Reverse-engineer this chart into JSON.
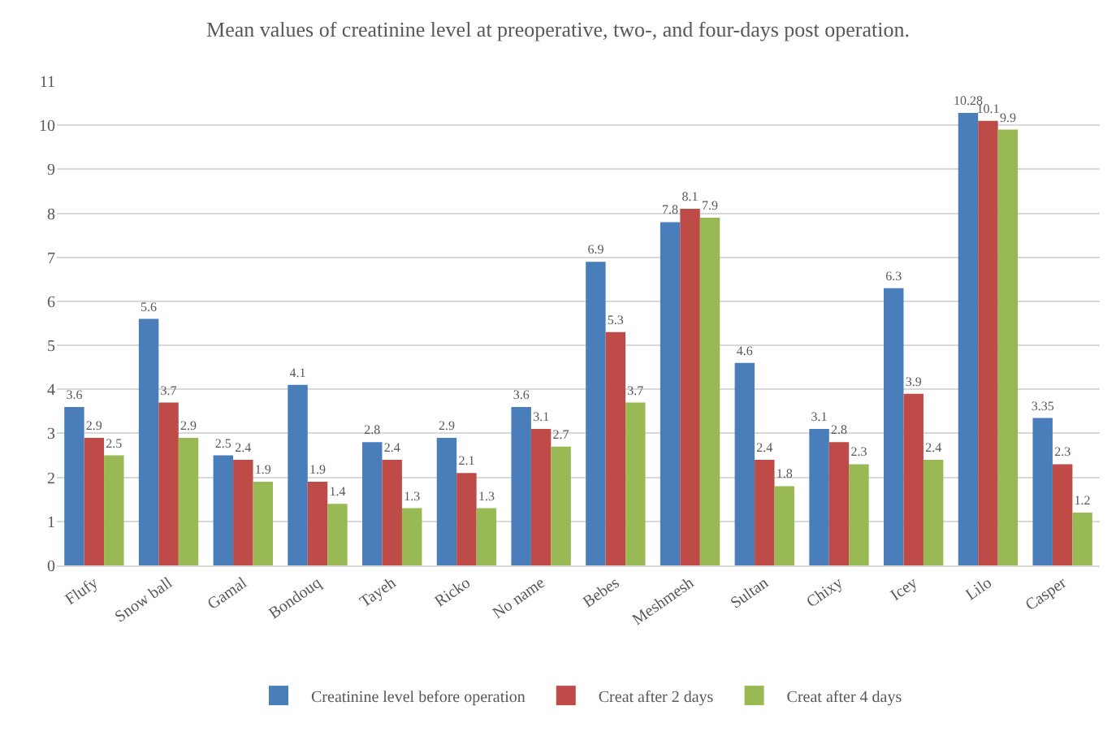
{
  "chart_data": {
    "type": "bar",
    "title": "Mean values of creatinine level at preoperative, two-, and four-days post operation.",
    "categories": [
      "Flufy",
      "Snow ball",
      "Gamal",
      "Bondouq",
      "Tayeh",
      "Ricko",
      "No name",
      "Bebes",
      "Meshmesh",
      "Sultan",
      "Chixy",
      "Icey",
      "Lilo",
      "Casper"
    ],
    "series": [
      {
        "name": "Creatinine level before operation",
        "color": "#4a7ebb",
        "values": [
          3.6,
          5.6,
          2.5,
          4.1,
          2.8,
          2.9,
          3.6,
          6.9,
          7.8,
          4.6,
          3.1,
          6.3,
          10.28,
          3.35
        ]
      },
      {
        "name": "Creat after 2 days",
        "color": "#be4b48",
        "values": [
          2.9,
          3.7,
          2.4,
          1.9,
          2.4,
          2.1,
          3.1,
          5.3,
          8.1,
          2.4,
          2.8,
          3.9,
          10.1,
          2.3
        ]
      },
      {
        "name": "Creat after 4 days",
        "color": "#98b954",
        "values": [
          2.5,
          2.9,
          1.9,
          1.4,
          1.3,
          1.3,
          2.7,
          3.7,
          7.9,
          1.8,
          2.3,
          2.4,
          9.9,
          1.2
        ]
      }
    ],
    "ylim": [
      0,
      11
    ],
    "yticks": [
      0,
      1,
      2,
      3,
      4,
      5,
      6,
      7,
      8,
      9,
      10,
      11
    ],
    "grid": "y",
    "legend": "bottom",
    "data_labels": true
  }
}
